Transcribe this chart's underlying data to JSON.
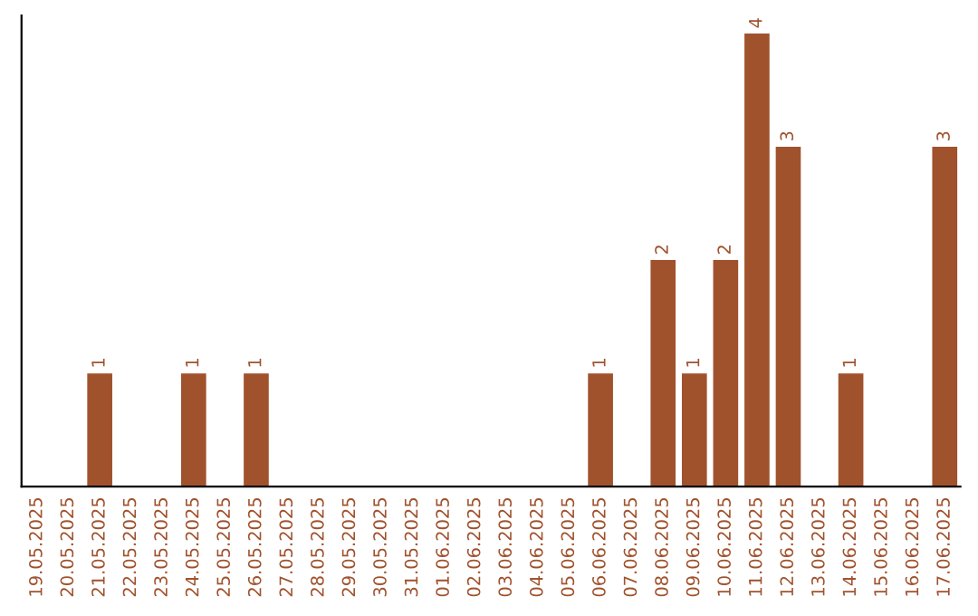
{
  "chart_data": {
    "type": "bar",
    "categories": [
      "19.05.2025",
      "20.05.2025",
      "21.05.2025",
      "22.05.2025",
      "23.05.2025",
      "24.05.2025",
      "25.05.2025",
      "26.05.2025",
      "27.05.2025",
      "28.05.2025",
      "29.05.2025",
      "30.05.2025",
      "31.05.2025",
      "01.06.2025",
      "02.06.2025",
      "03.06.2025",
      "04.06.2025",
      "05.06.2025",
      "06.06.2025",
      "07.06.2025",
      "08.06.2025",
      "09.06.2025",
      "10.06.2025",
      "11.06.2025",
      "12.06.2025",
      "13.06.2025",
      "14.06.2025",
      "15.06.2025",
      "16.06.2025",
      "17.06.2025"
    ],
    "values": [
      0,
      0,
      1,
      0,
      0,
      1,
      0,
      1,
      0,
      0,
      0,
      0,
      0,
      0,
      0,
      0,
      0,
      0,
      1,
      0,
      2,
      1,
      2,
      4,
      3,
      0,
      1,
      0,
      0,
      3
    ],
    "value_labels": [
      null,
      null,
      "1",
      null,
      null,
      "1",
      null,
      "1",
      null,
      null,
      null,
      null,
      null,
      null,
      null,
      null,
      null,
      null,
      "1",
      null,
      "2",
      "1",
      "2",
      "4",
      "3",
      null,
      "1",
      null,
      null,
      "3"
    ],
    "color": "#a0522d",
    "grid": false,
    "legend": false
  }
}
